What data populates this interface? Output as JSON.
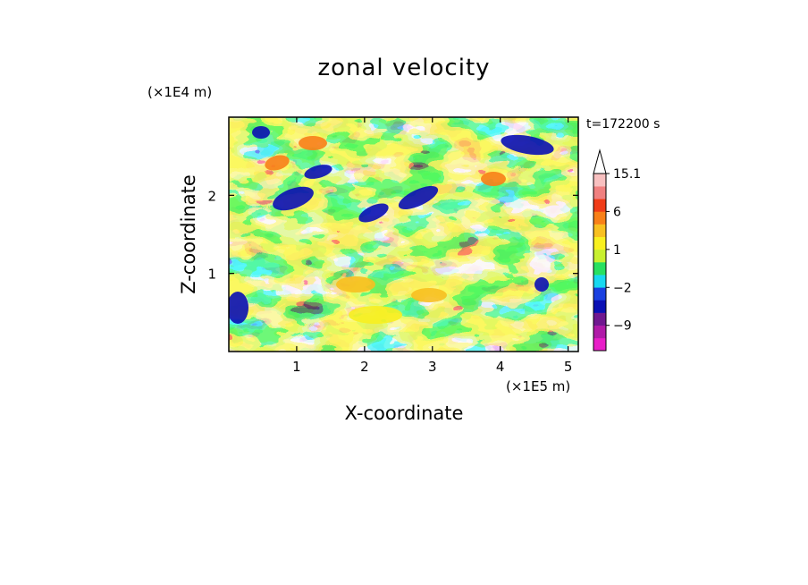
{
  "chart_data": {
    "type": "heatmap",
    "title": "zonal velocity",
    "xlabel": "X-coordinate",
    "ylabel": "Z-coordinate",
    "x_unit": "(×1E5 m)",
    "y_unit": "(×1E4 m)",
    "time_label": "t=172200 s",
    "xlim": [
      0,
      5.15
    ],
    "ylim": [
      0,
      3.0
    ],
    "x_ticks": [
      1,
      2,
      3,
      4,
      5
    ],
    "x_tick_labels": [
      "1",
      "2",
      "3",
      "4",
      "5"
    ],
    "y_ticks": [
      1,
      2
    ],
    "y_tick_labels": [
      "1",
      "2"
    ],
    "colorbar": {
      "levels": [
        -15,
        -12,
        -9,
        -6,
        -3,
        -2,
        -1,
        0,
        1,
        2,
        3,
        6,
        9,
        12,
        15.1
      ],
      "tick_values": [
        15.1,
        6,
        1,
        -2,
        -9
      ],
      "tick_labels": [
        "15.1",
        "6",
        "1",
        "−2",
        "−9"
      ],
      "colors": [
        "#e81ec8",
        "#b01aa8",
        "#701890",
        "#0a10b4",
        "#1a40e0",
        "#18d8f0",
        "#28e060",
        "#c8f030",
        "#f8f020",
        "#f8c020",
        "#f88018",
        "#f03c18",
        "#f08080",
        "#f8c0c0"
      ],
      "extend": "max"
    },
    "description_field": "zonal velocity contours with banded wave structures"
  }
}
